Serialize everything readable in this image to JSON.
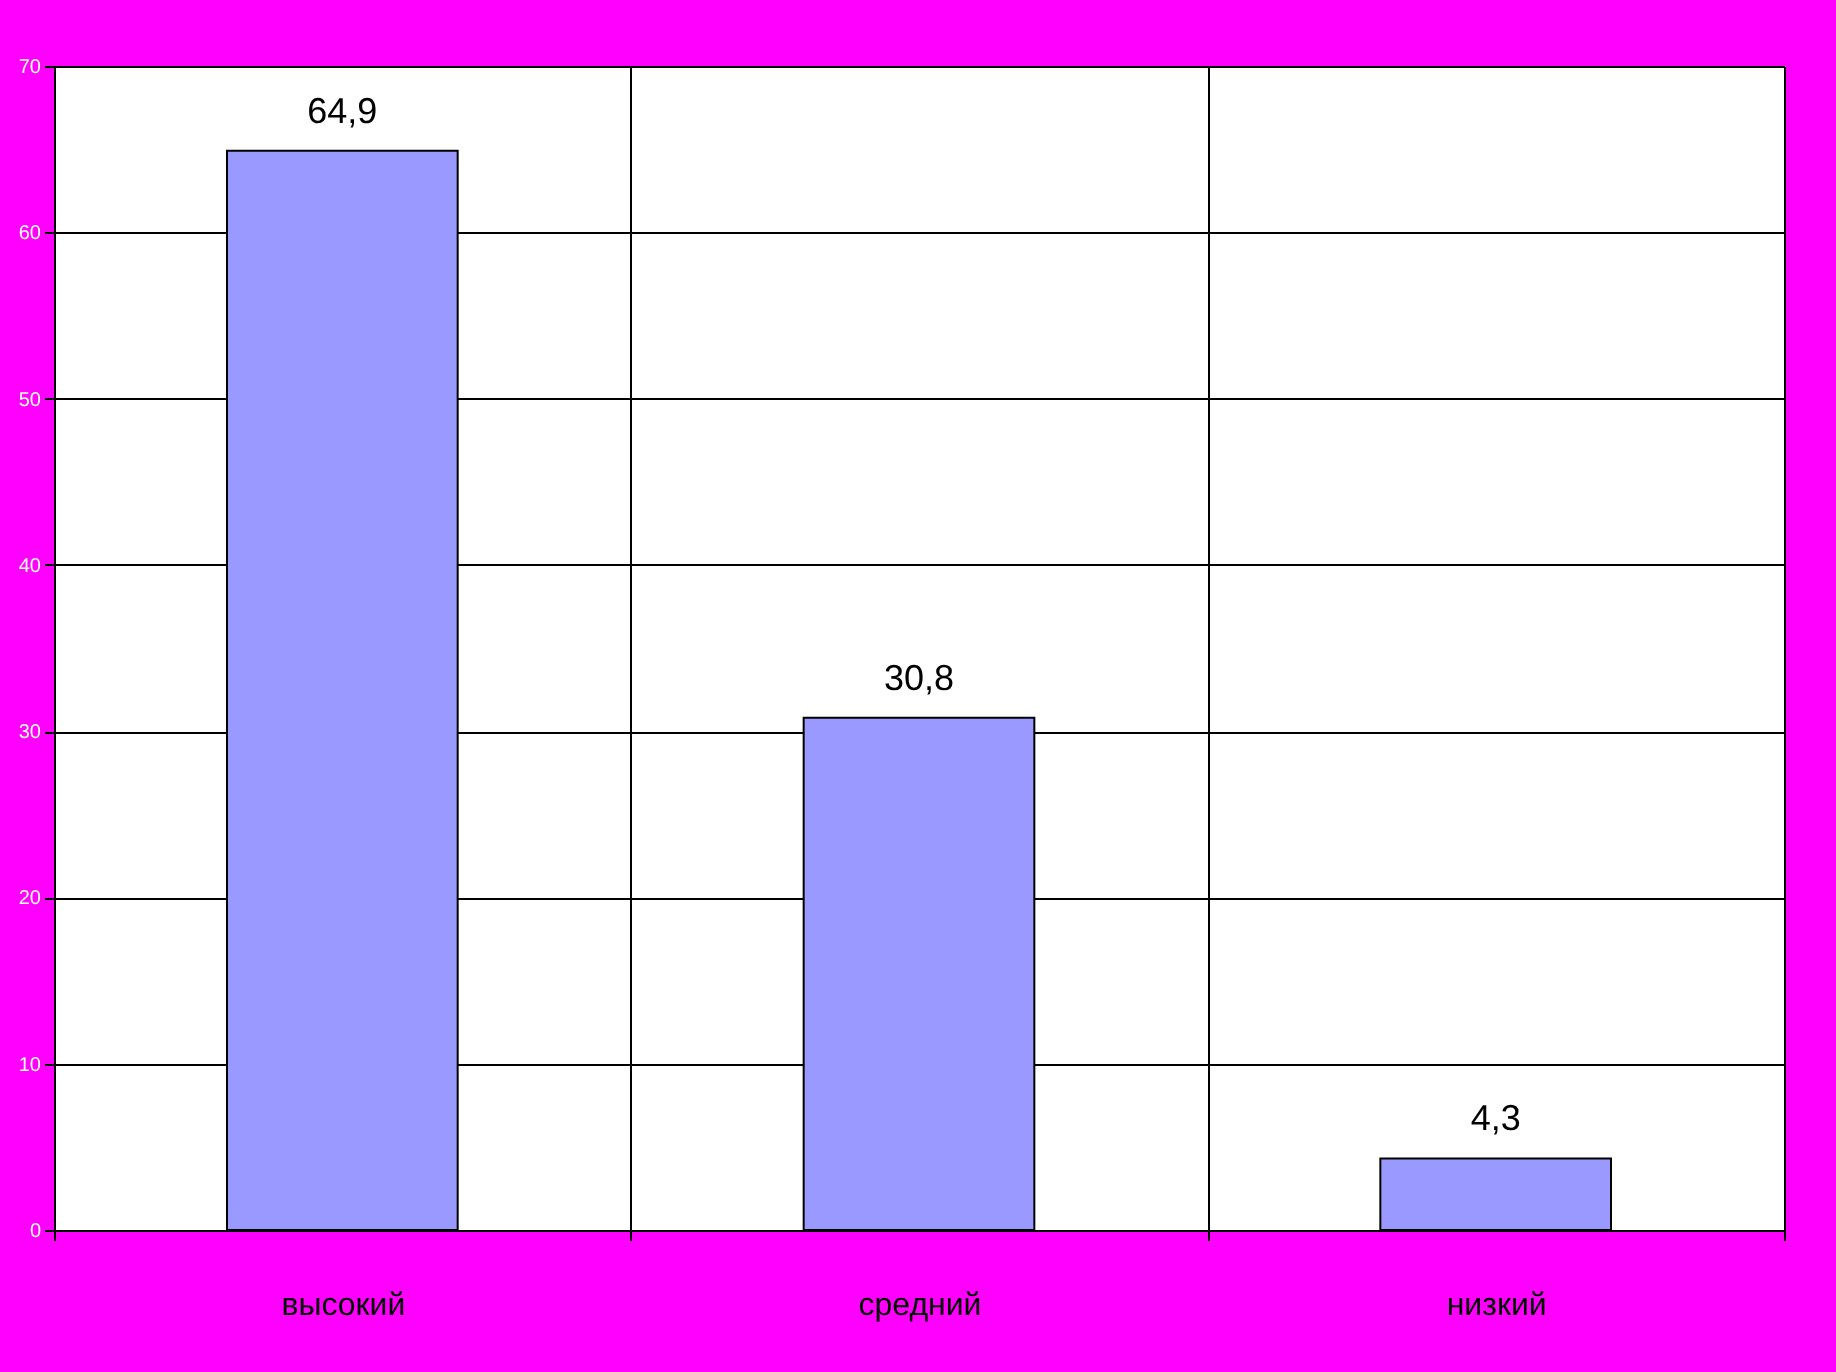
{
  "chart_data": {
    "type": "bar",
    "categories": [
      "высокий",
      "средний",
      "низкий"
    ],
    "values": [
      64.9,
      30.8,
      4.3
    ],
    "value_labels": [
      "64,9",
      "30,8",
      "4,3"
    ],
    "color": "#9999ff",
    "ylim": [
      0,
      70
    ],
    "yticks": [
      0,
      10,
      20,
      30,
      40,
      50,
      60,
      70
    ],
    "grid": true
  }
}
